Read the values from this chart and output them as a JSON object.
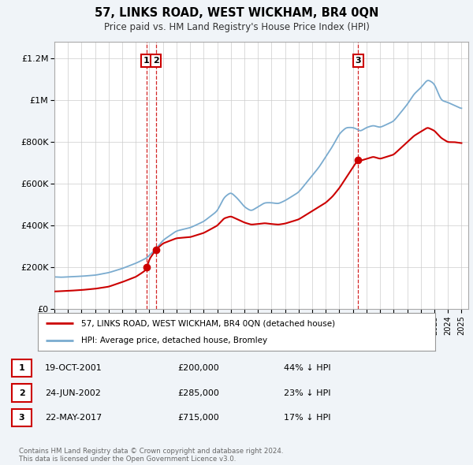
{
  "title": "57, LINKS ROAD, WEST WICKHAM, BR4 0QN",
  "subtitle": "Price paid vs. HM Land Registry's House Price Index (HPI)",
  "legend_label_red": "57, LINKS ROAD, WEST WICKHAM, BR4 0QN (detached house)",
  "legend_label_blue": "HPI: Average price, detached house, Bromley",
  "footnote": "Contains HM Land Registry data © Crown copyright and database right 2024.\nThis data is licensed under the Open Government Licence v3.0.",
  "transactions": [
    {
      "label": "1",
      "date": "19-OCT-2001",
      "price": "£200,000",
      "pct": "44% ↓ HPI",
      "x_year": 2001.8,
      "y_val": 200000
    },
    {
      "label": "2",
      "date": "24-JUN-2002",
      "price": "£285,000",
      "pct": "23% ↓ HPI",
      "x_year": 2002.48,
      "y_val": 285000
    },
    {
      "label": "3",
      "date": "22-MAY-2017",
      "price": "£715,000",
      "pct": "17% ↓ HPI",
      "x_year": 2017.38,
      "y_val": 715000
    }
  ],
  "red_color": "#cc0000",
  "blue_color": "#7aabcf",
  "background_color": "#f0f4f8",
  "plot_bg_color": "#ffffff",
  "grid_color": "#cccccc",
  "ylim_max": 1280000,
  "xlim_min": 1995,
  "xlim_max": 2025.5,
  "yticks": [
    0,
    200000,
    400000,
    600000,
    800000,
    1000000,
    1200000
  ],
  "ytick_labels": [
    "£0",
    "£200K",
    "£400K",
    "£600K",
    "£800K",
    "£1M",
    "£1.2M"
  ]
}
